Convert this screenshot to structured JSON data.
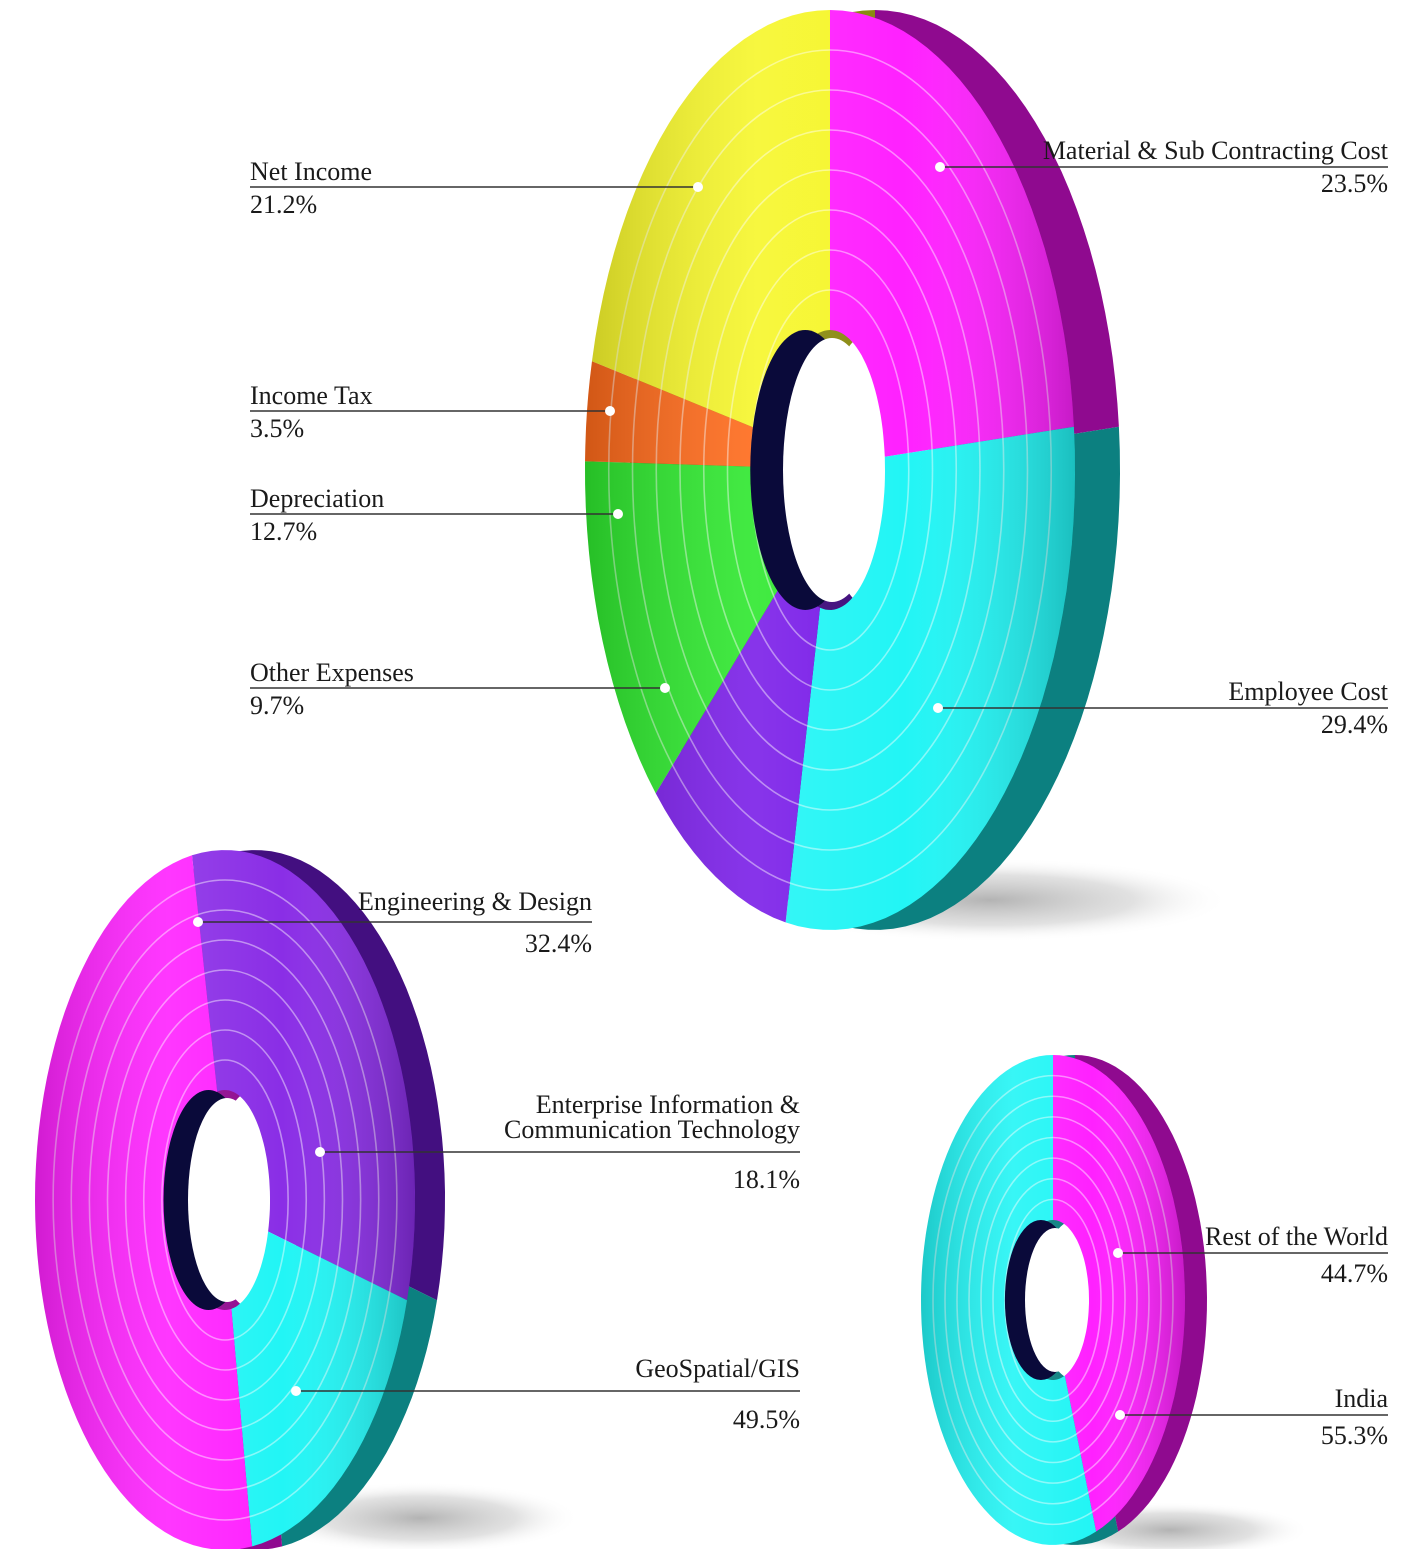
{
  "chart_data": [
    {
      "type": "pie",
      "slices": [
        {
          "label": "Material & Sub Contracting Cost",
          "display": "23.5%",
          "value": 23.5,
          "color": "#ff21ff",
          "side": "#8f0a8f"
        },
        {
          "label": "Employee Cost",
          "display": "29.4%",
          "value": 29.4,
          "color": "#22f5f5",
          "side": "#0c8080"
        },
        {
          "label": "Other Expenses",
          "display": "9.7%",
          "value": 9.7,
          "color": "#7a1ee8",
          "side": "#3e0a7a"
        },
        {
          "label": "Depreciation",
          "display": "12.7%",
          "value": 12.7,
          "color": "#2ee82e",
          "side": "#137013"
        },
        {
          "label": "Income Tax",
          "display": "3.5%",
          "value": 3.5,
          "color": "#ff6a1a",
          "side": "#8a2e05"
        },
        {
          "label": "Net Income",
          "display": "21.2%",
          "value": 21.2,
          "color": "#f6f62a",
          "side": "#8a8a10"
        }
      ]
    },
    {
      "type": "pie",
      "slices": [
        {
          "label": "Engineering & Design",
          "display": "32.4%",
          "value": 32.4,
          "color": "#8a2ee6",
          "side": "#430f80"
        },
        {
          "label_lines": [
            "Enterprise Information &",
            "Communication Technology"
          ],
          "display": "18.1%",
          "value": 18.1,
          "color": "#22f5f5",
          "side": "#0c8080"
        },
        {
          "label": "GeoSpatial/GIS",
          "display": "49.5%",
          "value": 49.5,
          "color": "#ff21ff",
          "side": "#8f0a8f"
        }
      ]
    },
    {
      "type": "pie",
      "slices": [
        {
          "label": "Rest of the World",
          "display": "44.7%",
          "value": 44.7,
          "color": "#ff21ff",
          "side": "#8f0a8f"
        },
        {
          "label": "India",
          "display": "55.3%",
          "value": 55.3,
          "color": "#22f5f5",
          "side": "#0c8080"
        }
      ]
    }
  ]
}
